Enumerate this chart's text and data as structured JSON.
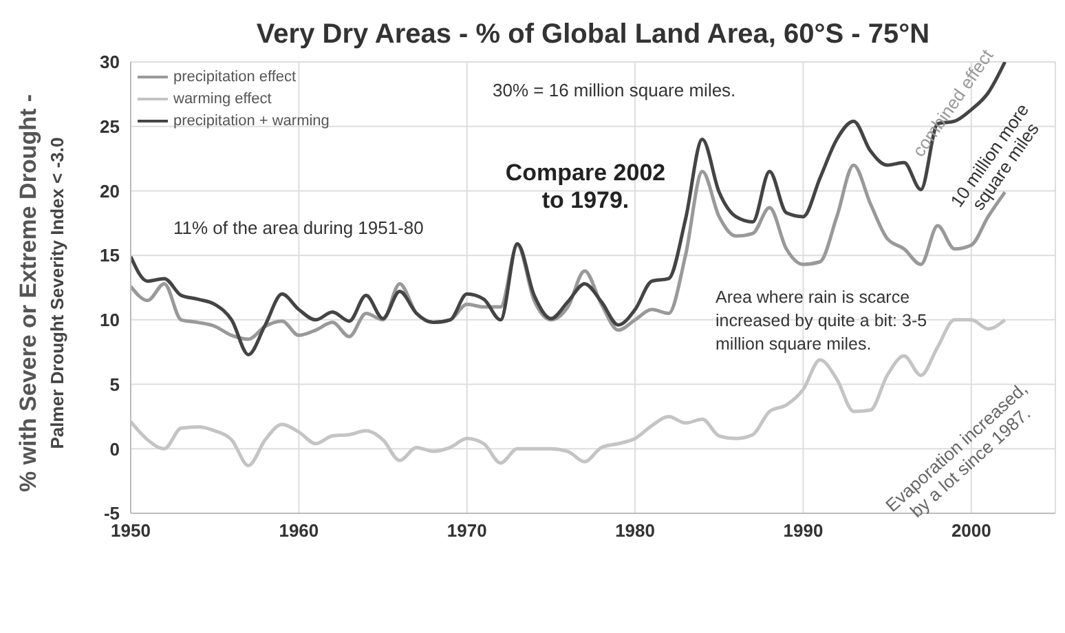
{
  "chart_data": {
    "type": "line",
    "title": "Very Dry Areas - % of Global Land Area, 60°S - 75°N",
    "ylabel": "% with Severe or Extreme Drought -\nPalmer Drought Severity Index < -3.0",
    "x": [
      1950,
      1951,
      1952,
      1953,
      1954,
      1955,
      1956,
      1957,
      1958,
      1959,
      1960,
      1961,
      1962,
      1963,
      1964,
      1965,
      1966,
      1967,
      1968,
      1969,
      1970,
      1971,
      1972,
      1973,
      1974,
      1975,
      1976,
      1977,
      1978,
      1979,
      1980,
      1981,
      1982,
      1983,
      1984,
      1985,
      1986,
      1987,
      1988,
      1989,
      1990,
      1991,
      1992,
      1993,
      1994,
      1995,
      1996,
      1997,
      1998,
      1999,
      2000,
      2001,
      2002
    ],
    "series": [
      {
        "name": "precipitation effect",
        "color": "#999999",
        "values": [
          12.6,
          11.5,
          12.8,
          10,
          9.8,
          9.5,
          8.8,
          8.5,
          9.5,
          9.9,
          8.8,
          9.2,
          9.8,
          8.7,
          10.5,
          10,
          12.8,
          10.5,
          9.8,
          10,
          11.2,
          11,
          11,
          15.8,
          11.5,
          10,
          11,
          13.8,
          11.2,
          9.2,
          10,
          10.8,
          10.5,
          15,
          21.5,
          18,
          16.5,
          16.7,
          18.7,
          15.5,
          14.3,
          14.5,
          18,
          22,
          19,
          16.3,
          15.5,
          14.3,
          17.3,
          15.5,
          15.8,
          18,
          19.9
        ]
      },
      {
        "name": "warming effect",
        "color": "#c4c4c4",
        "values": [
          2.1,
          0.7,
          0,
          1.6,
          1.7,
          1.4,
          0.7,
          -1.3,
          0.7,
          1.9,
          1.3,
          0.4,
          1,
          1.1,
          1.4,
          0.7,
          -0.9,
          0.1,
          -0.2,
          0.1,
          0.8,
          0.4,
          -1.1,
          0,
          0,
          0,
          -0.2,
          -1,
          0.1,
          0.4,
          0.8,
          1.8,
          2.5,
          2,
          2.3,
          1,
          0.8,
          1.1,
          2.9,
          3.4,
          4.6,
          6.9,
          5.4,
          2.9,
          3,
          5.7,
          7.2,
          5.7,
          7.9,
          10,
          10,
          9.3,
          10
        ]
      },
      {
        "name": "precipitation + warming",
        "color": "#444444",
        "values": [
          14.9,
          13,
          13.2,
          11.9,
          11.6,
          11.2,
          10,
          7.3,
          9.6,
          12,
          10.8,
          10,
          10.6,
          9.9,
          11.9,
          10.1,
          12.2,
          10.5,
          9.8,
          10,
          12,
          11.6,
          10,
          15.9,
          11.9,
          10.1,
          11.4,
          12.8,
          11.4,
          9.6,
          10.8,
          13,
          13.2,
          17.8,
          24,
          19.9,
          18,
          17.6,
          21.5,
          18.3,
          18,
          21,
          24,
          25.4,
          23.1,
          22,
          22.2,
          20.1,
          25.2,
          25.4,
          26.3,
          27.6,
          30
        ]
      }
    ],
    "xlim": [
      1950,
      2005
    ],
    "xticks": [
      1950,
      1960,
      1970,
      1980,
      1990,
      2000
    ],
    "ylim": [
      -5,
      30
    ],
    "yticks": [
      -5,
      0,
      5,
      10,
      15,
      20,
      25,
      30
    ],
    "grid": true,
    "legend": "top left",
    "marker": "none",
    "line_style": "solid",
    "annotations": [
      "30% = 16 million square miles.",
      "Compare 2002 to 1979.",
      "11% of the area during 1951-80",
      "Area where rain is scarce increased by quite a bit: 3-5 million square miles.",
      "combined effect",
      "10 million more square miles",
      "Evaporation increased, by a lot since 1987."
    ]
  }
}
